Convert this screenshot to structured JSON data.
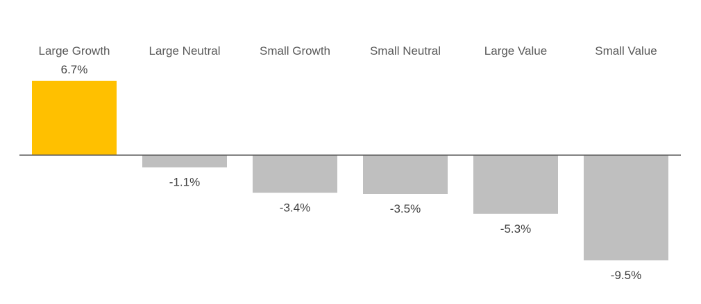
{
  "chart_data": {
    "type": "bar",
    "categories": [
      "Large Growth",
      "Large Neutral",
      "Small Growth",
      "Small Neutral",
      "Large Value",
      "Small Value"
    ],
    "values": [
      6.7,
      -1.1,
      -3.4,
      -3.5,
      -5.3,
      -9.5
    ],
    "data_labels": [
      "6.7%",
      "-1.1%",
      "-3.4%",
      "-3.5%",
      "-5.3%",
      "-9.5%"
    ],
    "title": "",
    "xlabel": "",
    "ylabel": "",
    "ylim": [
      -9.5,
      6.7
    ],
    "grid": false,
    "legend": "none",
    "category_label_position": "top",
    "colors": {
      "highlight": "#FFC000",
      "default": "#BFBFBF",
      "axis": "#595959"
    },
    "highlight_index": 0
  }
}
